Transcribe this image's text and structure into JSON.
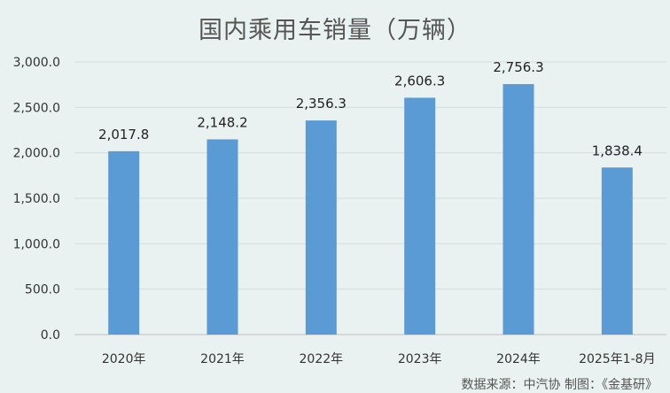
{
  "chart_data": {
    "type": "bar",
    "title": "国内乘用车销量（万辆）",
    "categories": [
      "2020年",
      "2021年",
      "2022年",
      "2023年",
      "2024年",
      "2025年1-8月"
    ],
    "values": [
      2017.8,
      2148.2,
      2356.3,
      2606.3,
      2756.3,
      1838.4
    ],
    "value_labels": [
      "2,017.8",
      "2,148.2",
      "2,356.3",
      "2,606.3",
      "2,756.3",
      "1,838.4"
    ],
    "yticks": [
      "0.0",
      "500.0",
      "1,000.0",
      "1,500.0",
      "2,000.0",
      "2,500.0",
      "3,000.0"
    ],
    "ylim": [
      0,
      3000
    ],
    "xlabel": "",
    "ylabel": "",
    "grid": true,
    "bar_color": "#5b9bd5"
  },
  "source_text": "数据来源：中汽协  制图：《金基研》"
}
